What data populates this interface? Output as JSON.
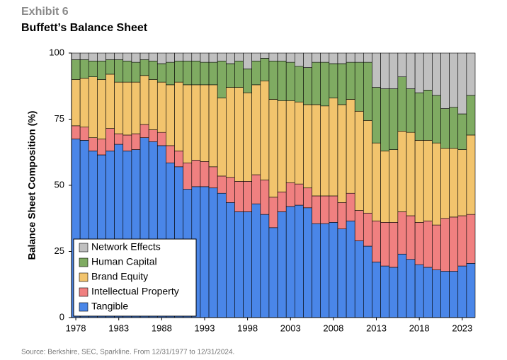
{
  "header": {
    "exhibit": "Exhibit 6",
    "title": "Buffett’s Balance Sheet"
  },
  "chart_data": {
    "type": "stacked_bar",
    "ylabel": "Balance Sheet Composition (%)",
    "categories": [
      "1978",
      null,
      null,
      null,
      null,
      "1983",
      null,
      null,
      null,
      null,
      "1988",
      null,
      null,
      null,
      null,
      "1993",
      null,
      null,
      null,
      null,
      "1998",
      null,
      null,
      null,
      null,
      "2003",
      null,
      null,
      null,
      null,
      "2008",
      null,
      null,
      null,
      null,
      "2013",
      null,
      null,
      null,
      null,
      "2018",
      null,
      null,
      null,
      null,
      "2023",
      null
    ],
    "series": [
      {
        "name": "Tangible",
        "color": "#4a86e8",
        "values": [
          67.5,
          67,
          63,
          61.5,
          63,
          65.5,
          63,
          63.5,
          68,
          66.5,
          65,
          58.5,
          57,
          48.5,
          49.5,
          49.5,
          49,
          47,
          43.5,
          40,
          40,
          43,
          39,
          34,
          40,
          42,
          42.5,
          41.5,
          35.5,
          35.5,
          36,
          33.5,
          36.5,
          29,
          27,
          21,
          19.5,
          19,
          24,
          22,
          20,
          19,
          18,
          17.5,
          17.5,
          19.5,
          20.5
        ]
      },
      {
        "name": "Intellectual Property",
        "color": "#f08080",
        "values": [
          5,
          5,
          5,
          6,
          8.5,
          4,
          6,
          6,
          5,
          4.5,
          5,
          6.5,
          6,
          10,
          10,
          9.5,
          8,
          6.5,
          9.5,
          11.5,
          11.5,
          11,
          13,
          11.5,
          7.5,
          9,
          8,
          7.5,
          10.5,
          10.5,
          10,
          10,
          10.5,
          11.5,
          12.5,
          15.5,
          16.5,
          17,
          16,
          16.5,
          16,
          17.5,
          17,
          20,
          20.5,
          19,
          18.5
        ]
      },
      {
        "name": "Brand Equity",
        "color": "#f2c46d",
        "values": [
          17.5,
          18.5,
          23,
          22.5,
          20.5,
          19.5,
          20,
          19.5,
          18.5,
          19,
          19,
          23,
          26,
          29.5,
          28.5,
          29,
          31,
          29.5,
          34,
          35.5,
          33.5,
          34,
          37.5,
          37,
          34.5,
          31,
          31,
          31.5,
          34.5,
          34,
          37,
          37,
          35.5,
          37.5,
          35,
          29.5,
          27,
          27.5,
          30.5,
          31.5,
          31,
          30.5,
          31,
          26.5,
          26,
          25,
          30
        ]
      },
      {
        "name": "Human Capital",
        "color": "#7fab62",
        "values": [
          7.5,
          7,
          6,
          7,
          5.5,
          8.5,
          8,
          7.5,
          6,
          7,
          7,
          8.5,
          8,
          9,
          9,
          8.5,
          8.5,
          14,
          9,
          10,
          9,
          9,
          8.5,
          14.5,
          15,
          14.5,
          13.5,
          14,
          16,
          16.5,
          13,
          15.5,
          14,
          18.5,
          22,
          21,
          23.5,
          23,
          20.5,
          16.5,
          18,
          19,
          18,
          15,
          15.5,
          13.5,
          15
        ]
      },
      {
        "name": "Network Effects",
        "color": "#c0c0c0",
        "values": [
          2.5,
          2.5,
          3,
          3,
          2.5,
          2.5,
          3,
          3.5,
          2.5,
          3,
          4,
          3.5,
          3,
          3,
          3,
          3.5,
          3.5,
          3,
          4,
          3,
          6,
          3,
          2,
          3,
          3,
          3.5,
          5,
          5.5,
          3.5,
          3.5,
          4,
          4,
          3.5,
          3.5,
          3.5,
          13,
          13.5,
          13.5,
          9,
          13.5,
          15,
          14,
          16,
          21,
          20.5,
          23,
          16
        ]
      }
    ],
    "ylim": [
      0,
      100
    ],
    "yticks": [
      0,
      25,
      50,
      75,
      100
    ],
    "legend": "lower left"
  },
  "footer": {
    "source": "Source: Berkshire, SEC, Sparkline. From 12/31/1977 to 12/31/2024."
  }
}
